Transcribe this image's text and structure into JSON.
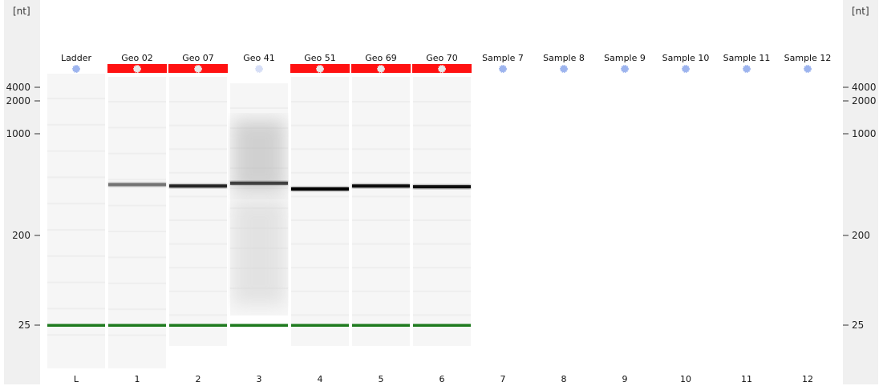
{
  "chart_data": {
    "type": "gel",
    "unit": "[nt]",
    "y_ticks": [
      4000,
      2000,
      1000,
      200,
      25
    ],
    "lanes": [
      {
        "name": "Ladder",
        "number": "L",
        "flag": "none",
        "bands": [
          {
            "size": 25,
            "kind": "marker"
          }
        ]
      },
      {
        "name": "Geo 02",
        "number": "1",
        "flag": "red",
        "bands": [
          {
            "size": 450,
            "intensity": 0.55
          },
          {
            "size": 25,
            "kind": "marker"
          }
        ]
      },
      {
        "name": "Geo 07",
        "number": "2",
        "flag": "red",
        "bands": [
          {
            "size": 440,
            "intensity": 0.85
          },
          {
            "size": 25,
            "kind": "marker"
          }
        ]
      },
      {
        "name": "Geo 41",
        "number": "3",
        "flag": "none",
        "bands": [
          {
            "size": 460,
            "intensity": 0.75
          },
          {
            "size": 25,
            "kind": "marker"
          }
        ],
        "smear": true
      },
      {
        "name": "Geo 51",
        "number": "4",
        "flag": "red",
        "bands": [
          {
            "size": 420,
            "intensity": 1.0
          },
          {
            "size": 25,
            "kind": "marker"
          }
        ]
      },
      {
        "name": "Geo 69",
        "number": "5",
        "flag": "red",
        "bands": [
          {
            "size": 440,
            "intensity": 0.95
          },
          {
            "size": 25,
            "kind": "marker"
          }
        ]
      },
      {
        "name": "Geo 70",
        "number": "6",
        "flag": "red",
        "bands": [
          {
            "size": 435,
            "intensity": 0.95
          },
          {
            "size": 25,
            "kind": "marker"
          }
        ]
      },
      {
        "name": "Sample 7",
        "number": "7",
        "flag": "none",
        "bands": []
      },
      {
        "name": "Sample 8",
        "number": "8",
        "flag": "none",
        "bands": []
      },
      {
        "name": "Sample 9",
        "number": "9",
        "flag": "none",
        "bands": []
      },
      {
        "name": "Sample 10",
        "number": "10",
        "flag": "none",
        "bands": []
      },
      {
        "name": "Sample 11",
        "number": "11",
        "flag": "none",
        "bands": []
      },
      {
        "name": "Sample 12",
        "number": "12",
        "flag": "none",
        "bands": []
      }
    ]
  },
  "colors": {
    "marker": "#1e7a1e",
    "flag": "#ff1111",
    "dot": "#9db4ee",
    "dot_faded": "#d6def6"
  }
}
